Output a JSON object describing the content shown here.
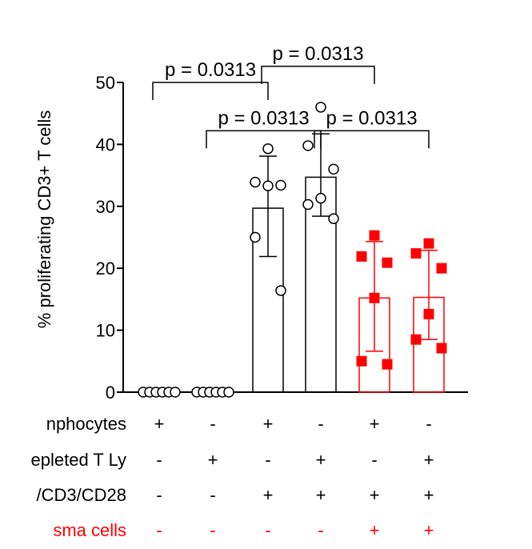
{
  "chart_data": {
    "type": "bar",
    "ylabel": "% proliferating CD3+ T cells",
    "ylim": [
      0,
      50
    ],
    "yticks": [
      0,
      10,
      20,
      30,
      40,
      50
    ],
    "groups": [
      {
        "mean": 0.0,
        "sd_low": 0.0,
        "sd_high": 0.0,
        "points": [
          0,
          0,
          0,
          0,
          0,
          0
        ],
        "color": "#000000",
        "marker": "circle"
      },
      {
        "mean": 0.0,
        "sd_low": 0.0,
        "sd_high": 0.0,
        "points": [
          0,
          0,
          0,
          0,
          0,
          0
        ],
        "color": "#000000",
        "marker": "circle"
      },
      {
        "mean": 29.7,
        "sd_low": 21.9,
        "sd_high": 38.1,
        "points": [
          39.3,
          33.9,
          33.4,
          33.3,
          25.0,
          16.4
        ],
        "color": "#000000",
        "marker": "circle"
      },
      {
        "mean": 34.7,
        "sd_low": 28.4,
        "sd_high": 41.7,
        "points": [
          46.0,
          39.8,
          36.0,
          31.3,
          30.3,
          28.0
        ],
        "color": "#000000",
        "marker": "circle"
      },
      {
        "mean": 15.2,
        "sd_low": 6.6,
        "sd_high": 24.3,
        "points": [
          25.3,
          21.9,
          20.9,
          15.2,
          5.0,
          4.5
        ],
        "color": "#ff0000",
        "marker": "square"
      },
      {
        "mean": 15.3,
        "sd_low": 8.5,
        "sd_high": 22.9,
        "points": [
          24.0,
          22.4,
          20.0,
          12.6,
          8.5,
          7.1
        ],
        "color": "#ff0000",
        "marker": "square"
      }
    ],
    "comparisons": [
      {
        "from": 0,
        "to": 2,
        "y": 50.0,
        "label": "p = 0.0313"
      },
      {
        "from": 2,
        "to": 4,
        "y": 52.6,
        "label": "p = 0.0313"
      },
      {
        "from": 1,
        "to": 3,
        "y": 42.2,
        "label": "p = 0.0313"
      },
      {
        "from": 3,
        "to": 5,
        "y": 42.2,
        "label": "p = 0.0313"
      }
    ],
    "condition_rows": [
      {
        "label": "nphocytes",
        "color": "#000000",
        "signs": [
          "+",
          "-",
          "+",
          "-",
          "+",
          "-"
        ]
      },
      {
        "label": "epleted T Ly",
        "color": "#000000",
        "signs": [
          "-",
          "+",
          "-",
          "+",
          "-",
          "+"
        ]
      },
      {
        "label": "/CD3/CD28",
        "color": "#000000",
        "signs": [
          "-",
          "-",
          "+",
          "+",
          "+",
          "+"
        ]
      },
      {
        "label": "sma cells",
        "color": "#ff0000",
        "signs": [
          "-",
          "-",
          "-",
          "-",
          "+",
          "+"
        ]
      }
    ]
  }
}
